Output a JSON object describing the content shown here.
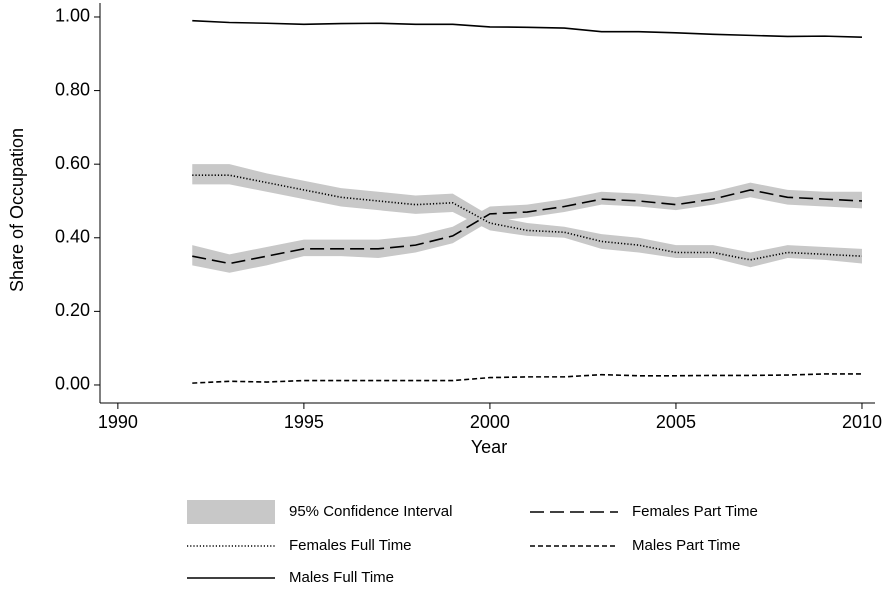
{
  "chart_data": {
    "type": "line",
    "x_label": "Year",
    "y_label": "Share of Occupation",
    "x": [
      1992,
      1993,
      1994,
      1995,
      1996,
      1997,
      1998,
      1999,
      2000,
      2001,
      2002,
      2003,
      2004,
      2005,
      2006,
      2007,
      2008,
      2009,
      2010
    ],
    "xlim": [
      1989.52,
      2010.35
    ],
    "xticks": [
      1990,
      1995,
      2000,
      2005,
      2010
    ],
    "ylim": [
      -0.049,
      1.038
    ],
    "yticks": [
      {
        "value": 0,
        "label": "0.00"
      },
      {
        "value": 0.2,
        "label": "0.20"
      },
      {
        "value": 0.4,
        "label": "0.40"
      },
      {
        "value": 0.6,
        "label": "0.60"
      },
      {
        "value": 0.8,
        "label": "0.80"
      },
      {
        "value": 1,
        "label": "1.00"
      }
    ],
    "ci": {
      "name": "95% Confidence Interval",
      "color": "#c8c8c8",
      "bands": [
        {
          "lower": [
            0.325,
            0.305,
            0.325,
            0.35,
            0.35,
            0.345,
            0.36,
            0.385,
            0.445,
            0.455,
            0.47,
            0.49,
            0.485,
            0.475,
            0.49,
            0.51,
            0.49,
            0.485,
            0.48
          ],
          "upper": [
            0.38,
            0.355,
            0.375,
            0.395,
            0.395,
            0.395,
            0.405,
            0.43,
            0.485,
            0.49,
            0.505,
            0.525,
            0.52,
            0.51,
            0.525,
            0.55,
            0.53,
            0.525,
            0.525
          ]
        },
        {
          "lower": [
            0.545,
            0.545,
            0.525,
            0.505,
            0.485,
            0.475,
            0.465,
            0.47,
            0.42,
            0.405,
            0.4,
            0.37,
            0.36,
            0.345,
            0.345,
            0.32,
            0.345,
            0.34,
            0.33
          ],
          "upper": [
            0.6,
            0.6,
            0.575,
            0.555,
            0.535,
            0.525,
            0.515,
            0.52,
            0.46,
            0.44,
            0.43,
            0.41,
            0.4,
            0.38,
            0.38,
            0.36,
            0.38,
            0.375,
            0.37
          ]
        }
      ]
    },
    "series": [
      {
        "name": "Females Part Time",
        "color": "#000000",
        "dash": "dashed",
        "values": [
          0.35,
          0.33,
          0.35,
          0.37,
          0.37,
          0.37,
          0.38,
          0.405,
          0.465,
          0.47,
          0.485,
          0.505,
          0.5,
          0.49,
          0.505,
          0.53,
          0.51,
          0.505,
          0.5
        ]
      },
      {
        "name": "Females Full Time",
        "color": "#000000",
        "dash": "dotted",
        "values": [
          0.57,
          0.57,
          0.55,
          0.53,
          0.51,
          0.5,
          0.49,
          0.495,
          0.44,
          0.42,
          0.415,
          0.39,
          0.38,
          0.36,
          0.36,
          0.34,
          0.36,
          0.355,
          0.35
        ]
      },
      {
        "name": "Males Part Time",
        "color": "#000000",
        "dash": "short-dashed",
        "values": [
          0.005,
          0.01,
          0.008,
          0.012,
          0.012,
          0.012,
          0.012,
          0.012,
          0.02,
          0.022,
          0.022,
          0.028,
          0.025,
          0.025,
          0.026,
          0.026,
          0.027,
          0.03,
          0.03
        ]
      },
      {
        "name": "Males Full Time",
        "color": "#000000",
        "dash": "solid",
        "values": [
          0.99,
          0.985,
          0.983,
          0.98,
          0.982,
          0.983,
          0.98,
          0.98,
          0.973,
          0.972,
          0.97,
          0.96,
          0.96,
          0.957,
          0.953,
          0.95,
          0.947,
          0.948,
          0.945
        ]
      }
    ]
  }
}
